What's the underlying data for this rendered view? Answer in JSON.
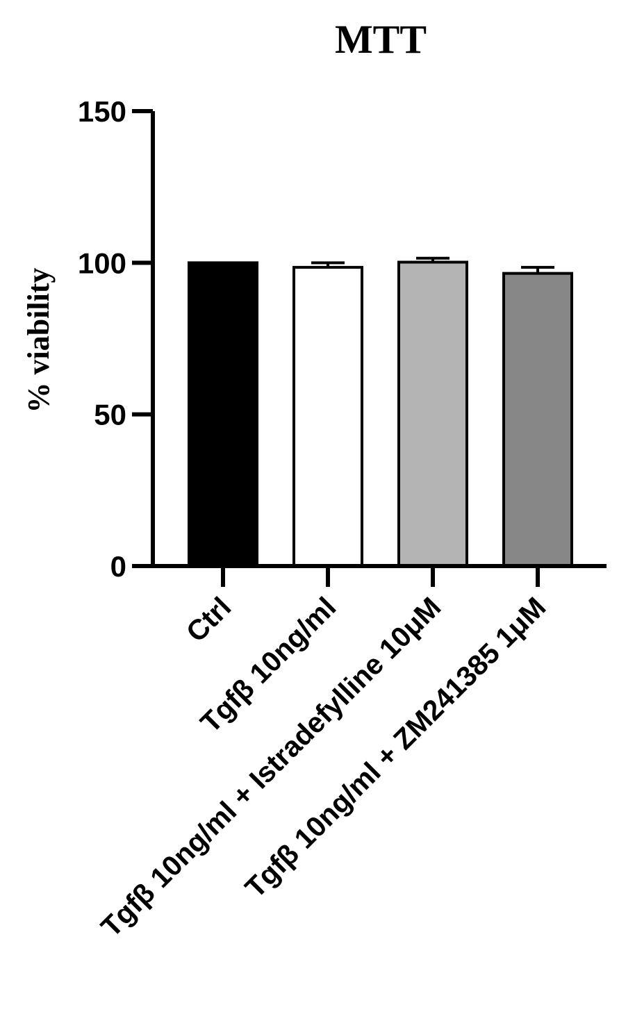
{
  "chart_data": {
    "type": "bar",
    "title": "MTT",
    "ylabel": "% viability",
    "xlabel": "",
    "ylim": [
      0,
      150
    ],
    "yticks": [
      "0",
      "50",
      "100",
      "150"
    ],
    "categories": [
      "Ctrl",
      "Tgfβ 10ng/ml",
      "Tgfβ 10ng/ml + Istradefylline 10μM",
      "Tgfβ 10ng/ml + ZM241385 1μM"
    ],
    "values": [
      100,
      98.5,
      100.2,
      96.5
    ],
    "errors": [
      0,
      1.5,
      1.3,
      2.0
    ],
    "colors": [
      "#000000",
      "#ffffff",
      "#b4b4b4",
      "#878787"
    ],
    "grid": false,
    "legend": "none"
  }
}
